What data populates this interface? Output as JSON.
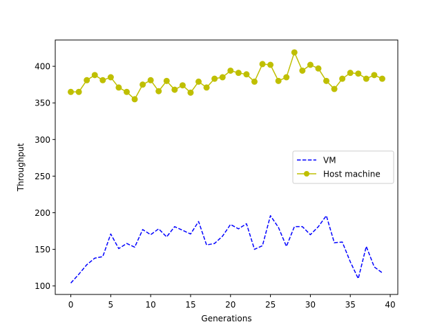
{
  "chart_data": {
    "type": "line",
    "title": "",
    "xlabel": "Generations",
    "ylabel": "Throughput",
    "xlim": [
      -1.95,
      40.95
    ],
    "ylim": [
      88.4,
      435.9
    ],
    "xticks": [
      0,
      5,
      10,
      15,
      20,
      25,
      30,
      35,
      40
    ],
    "yticks": [
      100,
      150,
      200,
      250,
      300,
      350,
      400
    ],
    "grid": false,
    "legend_position": "center-right",
    "x": [
      0,
      1,
      2,
      3,
      4,
      5,
      6,
      7,
      8,
      9,
      10,
      11,
      12,
      13,
      14,
      15,
      16,
      17,
      18,
      19,
      20,
      21,
      22,
      23,
      24,
      25,
      26,
      27,
      28,
      29,
      30,
      31,
      32,
      33,
      34,
      35,
      36,
      37,
      38,
      39
    ],
    "series": [
      {
        "name": "VM",
        "color": "#0000ff",
        "style": "dashed",
        "marker": "none",
        "values": [
          104,
          116,
          129,
          138,
          140,
          171,
          151,
          158,
          153,
          177,
          170,
          178,
          167,
          181,
          176,
          171,
          188,
          156,
          158,
          168,
          184,
          178,
          185,
          150,
          155,
          196,
          180,
          154,
          181,
          181,
          170,
          181,
          196,
          159,
          160,
          133,
          110,
          154,
          126,
          118
        ]
      },
      {
        "name": "Host machine",
        "color": "#bfbf00",
        "style": "solid",
        "marker": "circle",
        "values": [
          365,
          365,
          381,
          388,
          381,
          385,
          371,
          365,
          355,
          375,
          381,
          366,
          380,
          368,
          374,
          364,
          379,
          371,
          383,
          385,
          394,
          391,
          389,
          379,
          403,
          402,
          380,
          385,
          419,
          394,
          402,
          397,
          380,
          369,
          383,
          391,
          390,
          383,
          388,
          383
        ]
      }
    ]
  }
}
